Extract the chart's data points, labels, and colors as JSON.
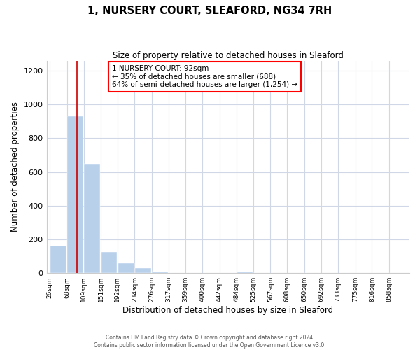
{
  "title": "1, NURSERY COURT, SLEAFORD, NG34 7RH",
  "subtitle": "Size of property relative to detached houses in Sleaford",
  "xlabel": "Distribution of detached houses by size in Sleaford",
  "ylabel": "Number of detached properties",
  "bar_labels": [
    "26sqm",
    "68sqm",
    "109sqm",
    "151sqm",
    "192sqm",
    "234sqm",
    "276sqm",
    "317sqm",
    "359sqm",
    "400sqm",
    "442sqm",
    "484sqm",
    "525sqm",
    "567sqm",
    "608sqm",
    "650sqm",
    "692sqm",
    "733sqm",
    "775sqm",
    "816sqm",
    "858sqm"
  ],
  "bar_values": [
    163,
    930,
    650,
    125,
    60,
    28,
    10,
    0,
    0,
    0,
    0,
    10,
    0,
    0,
    0,
    0,
    0,
    0,
    0,
    0,
    0
  ],
  "bar_color": "#b8d0ea",
  "property_line_x": 92,
  "bin_edges": [
    26,
    68,
    109,
    151,
    192,
    234,
    276,
    317,
    359,
    400,
    442,
    484,
    525,
    567,
    608,
    650,
    692,
    733,
    775,
    816,
    858,
    900
  ],
  "annotation_line1": "1 NURSERY COURT: 92sqm",
  "annotation_line2": "← 35% of detached houses are smaller (688)",
  "annotation_line3": "64% of semi-detached houses are larger (1,254) →",
  "ylim": [
    0,
    1260
  ],
  "yticks": [
    0,
    200,
    400,
    600,
    800,
    1000,
    1200
  ],
  "footer_line1": "Contains HM Land Registry data © Crown copyright and database right 2024.",
  "footer_line2": "Contains public sector information licensed under the Open Government Licence v3.0.",
  "bg_color": "#ffffff",
  "grid_color": "#d0d8e8"
}
